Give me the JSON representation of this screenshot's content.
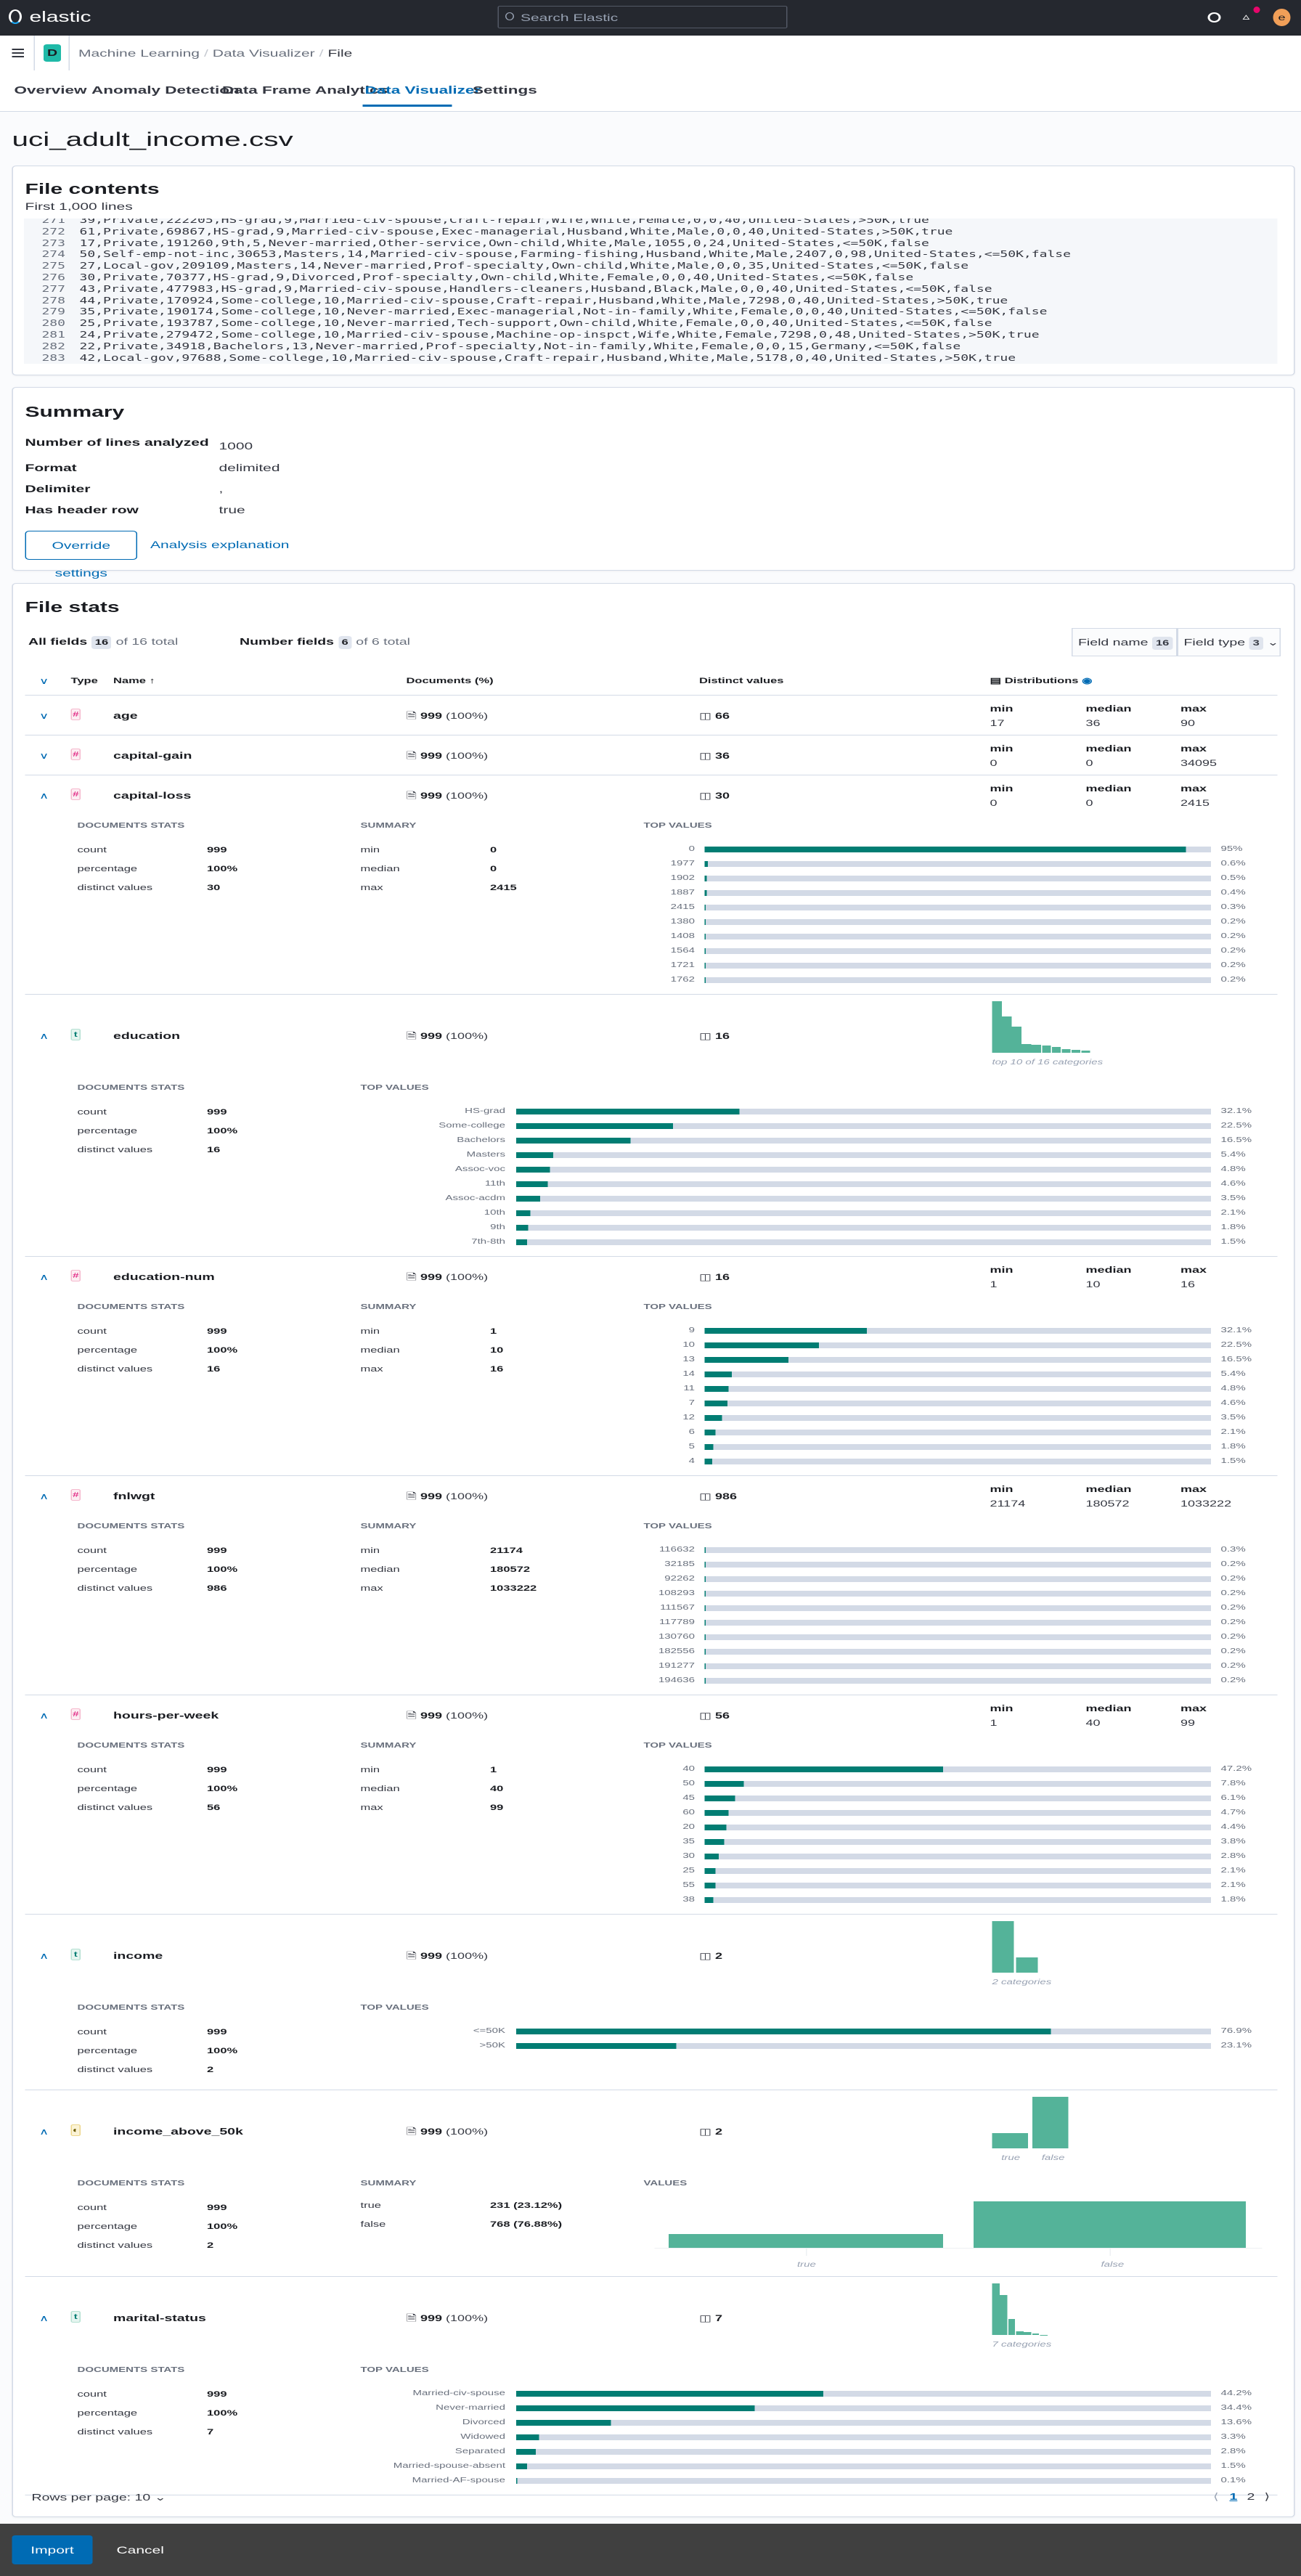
{
  "header": {
    "logo_text": "elastic",
    "search_placeholder": "Search Elastic",
    "avatar_initial": "e",
    "avatar_color": "#f19f58",
    "notification_color": "#e7066b"
  },
  "breadcrumb": {
    "space_initial": "D",
    "items": [
      "Machine Learning",
      "Data Visualizer",
      "File"
    ]
  },
  "tabs": [
    {
      "label": "Overview",
      "active": false
    },
    {
      "label": "Anomaly Detection",
      "active": false
    },
    {
      "label": "Data Frame Analytics",
      "active": false
    },
    {
      "label": "Data Visualizer",
      "active": true
    },
    {
      "label": "Settings",
      "active": false
    }
  ],
  "page_title": "uci_adult_income.csv",
  "file_contents": {
    "title": "File contents",
    "subtitle": "First 1,000 lines",
    "lines": [
      {
        "n": "271",
        "text": "39,Private,222205,HS-grad,9,Married-civ-spouse,Craft-repair,Wife,White,Female,0,0,40,United-States,>50K,true"
      },
      {
        "n": "272",
        "text": "61,Private,69867,HS-grad,9,Married-civ-spouse,Exec-managerial,Husband,White,Male,0,0,40,United-States,>50K,true"
      },
      {
        "n": "273",
        "text": "17,Private,191260,9th,5,Never-married,Other-service,Own-child,White,Male,1055,0,24,United-States,<=50K,false"
      },
      {
        "n": "274",
        "text": "50,Self-emp-not-inc,30653,Masters,14,Married-civ-spouse,Farming-fishing,Husband,White,Male,2407,0,98,United-States,<=50K,false"
      },
      {
        "n": "275",
        "text": "27,Local-gov,209109,Masters,14,Never-married,Prof-specialty,Own-child,White,Male,0,0,35,United-States,<=50K,false"
      },
      {
        "n": "276",
        "text": "30,Private,70377,HS-grad,9,Divorced,Prof-specialty,Own-child,White,Female,0,0,40,United-States,<=50K,false"
      },
      {
        "n": "277",
        "text": "43,Private,477983,HS-grad,9,Married-civ-spouse,Handlers-cleaners,Husband,Black,Male,0,0,40,United-States,<=50K,false"
      },
      {
        "n": "278",
        "text": "44,Private,170924,Some-college,10,Married-civ-spouse,Craft-repair,Husband,White,Male,7298,0,40,United-States,>50K,true"
      },
      {
        "n": "279",
        "text": "35,Private,190174,Some-college,10,Never-married,Exec-managerial,Not-in-family,White,Female,0,0,40,United-States,<=50K,false"
      },
      {
        "n": "280",
        "text": "25,Private,193787,Some-college,10,Never-married,Tech-support,Own-child,White,Female,0,0,40,United-States,<=50K,false"
      },
      {
        "n": "281",
        "text": "24,Private,279472,Some-college,10,Married-civ-spouse,Machine-op-inspct,Wife,White,Female,7298,0,48,United-States,>50K,true"
      },
      {
        "n": "282",
        "text": "22,Private,34918,Bachelors,13,Never-married,Prof-specialty,Not-in-family,White,Female,0,0,15,Germany,<=50K,false"
      },
      {
        "n": "283",
        "text": "42,Local-gov,97688,Some-college,10,Married-civ-spouse,Craft-repair,Husband,White,Male,5178,0,40,United-States,>50K,true"
      }
    ]
  },
  "summary": {
    "title": "Summary",
    "rows": [
      {
        "label": "Number of lines analyzed",
        "value": "1000"
      },
      {
        "label": "Format",
        "value": "delimited"
      },
      {
        "label": "Delimiter",
        "value": ","
      },
      {
        "label": "Has header row",
        "value": "true"
      }
    ],
    "override_button": "Override settings",
    "explanation_link": "Analysis explanation"
  },
  "file_stats": {
    "title": "File stats",
    "all_fields": {
      "label": "All fields",
      "count": "16",
      "total": "of 16 total"
    },
    "number_fields": {
      "label": "Number fields",
      "count": "6",
      "total": "of 6 total"
    },
    "field_name_filter": {
      "label": "Field name",
      "count": "16"
    },
    "field_type_filter": {
      "label": "Field type",
      "count": "3"
    },
    "columns": {
      "type": "Type",
      "name": "Name",
      "documents": "Documents (%)",
      "distinct": "Distinct values",
      "distributions": "Distributions"
    },
    "labels": {
      "min": "min",
      "median": "median",
      "max": "max",
      "documents_stats": "DOCUMENTS STATS",
      "summary": "SUMMARY",
      "top_values": "TOP VALUES",
      "values": "VALUES",
      "count": "count",
      "percentage": "percentage",
      "distinct_values": "distinct values"
    },
    "fields": [
      {
        "name": "age",
        "type": "number",
        "documents": "999",
        "documents_pct": "(100%)",
        "distinct": "66",
        "expanded": false,
        "stats": {
          "min": "17",
          "median": "36",
          "max": "90"
        }
      },
      {
        "name": "capital-gain",
        "type": "number",
        "documents": "999",
        "documents_pct": "(100%)",
        "distinct": "36",
        "expanded": false,
        "stats": {
          "min": "0",
          "median": "0",
          "max": "34095"
        }
      },
      {
        "name": "capital-loss",
        "type": "number",
        "documents": "999",
        "documents_pct": "(100%)",
        "distinct": "30",
        "expanded": true,
        "stats": {
          "min": "0",
          "median": "0",
          "max": "2415"
        },
        "doc_stats": {
          "count": "999",
          "percentage": "100%",
          "distinct_values": "30"
        },
        "top_values": [
          {
            "value": "0",
            "pct": "95%"
          },
          {
            "value": "1977",
            "pct": "0.6%"
          },
          {
            "value": "1902",
            "pct": "0.5%"
          },
          {
            "value": "1887",
            "pct": "0.4%"
          },
          {
            "value": "2415",
            "pct": "0.3%"
          },
          {
            "value": "1380",
            "pct": "0.2%"
          },
          {
            "value": "1408",
            "pct": "0.2%"
          },
          {
            "value": "1564",
            "pct": "0.2%"
          },
          {
            "value": "1721",
            "pct": "0.2%"
          },
          {
            "value": "1762",
            "pct": "0.2%"
          }
        ]
      },
      {
        "name": "education",
        "type": "text",
        "documents": "999",
        "documents_pct": "(100%)",
        "distinct": "16",
        "expanded": true,
        "histogram_caption": "top 10 of 16 categories",
        "doc_stats": {
          "count": "999",
          "percentage": "100%",
          "distinct_values": "16"
        },
        "top_values": [
          {
            "value": "HS-grad",
            "pct": "32.1%"
          },
          {
            "value": "Some-college",
            "pct": "22.5%"
          },
          {
            "value": "Bachelors",
            "pct": "16.5%"
          },
          {
            "value": "Masters",
            "pct": "5.4%"
          },
          {
            "value": "Assoc-voc",
            "pct": "4.8%"
          },
          {
            "value": "11th",
            "pct": "4.6%"
          },
          {
            "value": "Assoc-acdm",
            "pct": "3.5%"
          },
          {
            "value": "10th",
            "pct": "2.1%"
          },
          {
            "value": "9th",
            "pct": "1.8%"
          },
          {
            "value": "7th-8th",
            "pct": "1.5%"
          }
        ]
      },
      {
        "name": "education-num",
        "type": "number",
        "documents": "999",
        "documents_pct": "(100%)",
        "distinct": "16",
        "expanded": true,
        "stats": {
          "min": "1",
          "median": "10",
          "max": "16"
        },
        "doc_stats": {
          "count": "999",
          "percentage": "100%",
          "distinct_values": "16"
        },
        "top_values": [
          {
            "value": "9",
            "pct": "32.1%"
          },
          {
            "value": "10",
            "pct": "22.5%"
          },
          {
            "value": "13",
            "pct": "16.5%"
          },
          {
            "value": "14",
            "pct": "5.4%"
          },
          {
            "value": "11",
            "pct": "4.8%"
          },
          {
            "value": "7",
            "pct": "4.6%"
          },
          {
            "value": "12",
            "pct": "3.5%"
          },
          {
            "value": "6",
            "pct": "2.1%"
          },
          {
            "value": "5",
            "pct": "1.8%"
          },
          {
            "value": "4",
            "pct": "1.5%"
          }
        ]
      },
      {
        "name": "fnlwgt",
        "type": "number",
        "documents": "999",
        "documents_pct": "(100%)",
        "distinct": "986",
        "expanded": true,
        "stats": {
          "min": "21174",
          "median": "180572",
          "max": "1033222"
        },
        "doc_stats": {
          "count": "999",
          "percentage": "100%",
          "distinct_values": "986"
        },
        "top_values": [
          {
            "value": "116632",
            "pct": "0.3%"
          },
          {
            "value": "32185",
            "pct": "0.2%"
          },
          {
            "value": "92262",
            "pct": "0.2%"
          },
          {
            "value": "108293",
            "pct": "0.2%"
          },
          {
            "value": "111567",
            "pct": "0.2%"
          },
          {
            "value": "117789",
            "pct": "0.2%"
          },
          {
            "value": "130760",
            "pct": "0.2%"
          },
          {
            "value": "182556",
            "pct": "0.2%"
          },
          {
            "value": "191277",
            "pct": "0.2%"
          },
          {
            "value": "194636",
            "pct": "0.2%"
          }
        ]
      },
      {
        "name": "hours-per-week",
        "type": "number",
        "documents": "999",
        "documents_pct": "(100%)",
        "distinct": "56",
        "expanded": true,
        "stats": {
          "min": "1",
          "median": "40",
          "max": "99"
        },
        "doc_stats": {
          "count": "999",
          "percentage": "100%",
          "distinct_values": "56"
        },
        "top_values": [
          {
            "value": "40",
            "pct": "47.2%"
          },
          {
            "value": "50",
            "pct": "7.8%"
          },
          {
            "value": "45",
            "pct": "6.1%"
          },
          {
            "value": "60",
            "pct": "4.7%"
          },
          {
            "value": "20",
            "pct": "4.4%"
          },
          {
            "value": "35",
            "pct": "3.8%"
          },
          {
            "value": "30",
            "pct": "2.8%"
          },
          {
            "value": "25",
            "pct": "2.1%"
          },
          {
            "value": "55",
            "pct": "2.1%"
          },
          {
            "value": "38",
            "pct": "1.8%"
          }
        ]
      },
      {
        "name": "income",
        "type": "text",
        "documents": "999",
        "documents_pct": "(100%)",
        "distinct": "2",
        "expanded": true,
        "histogram_caption": "2 categories",
        "doc_stats": {
          "count": "999",
          "percentage": "100%",
          "distinct_values": "2"
        },
        "top_values": [
          {
            "value": "<=50K",
            "pct": "76.9%"
          },
          {
            "value": ">50K",
            "pct": "23.1%"
          }
        ]
      },
      {
        "name": "income_above_50k",
        "type": "boolean",
        "documents": "999",
        "documents_pct": "(100%)",
        "distinct": "2",
        "expanded": true,
        "doc_stats": {
          "count": "999",
          "percentage": "100%",
          "distinct_values": "2"
        },
        "bool_values": [
          {
            "label": "true",
            "summary": "231 (23.12%)",
            "count": 231
          },
          {
            "label": "false",
            "summary": "768 (76.88%)",
            "count": 768
          }
        ]
      },
      {
        "name": "marital-status",
        "type": "text",
        "documents": "999",
        "documents_pct": "(100%)",
        "distinct": "7",
        "expanded": true,
        "histogram_caption": "7 categories",
        "doc_stats": {
          "count": "999",
          "percentage": "100%",
          "distinct_values": "7"
        },
        "top_values": [
          {
            "value": "Married-civ-spouse",
            "pct": "44.2%"
          },
          {
            "value": "Never-married",
            "pct": "34.4%"
          },
          {
            "value": "Divorced",
            "pct": "13.6%"
          },
          {
            "value": "Widowed",
            "pct": "3.3%"
          },
          {
            "value": "Separated",
            "pct": "2.8%"
          },
          {
            "value": "Married-spouse-absent",
            "pct": "1.5%"
          },
          {
            "value": "Married-AF-spouse",
            "pct": "0.1%"
          }
        ]
      }
    ],
    "pagination": {
      "rows_per_page": "Rows per page: 10",
      "pages": [
        "1",
        "2"
      ],
      "current": "1"
    }
  },
  "footer": {
    "import": "Import",
    "cancel": "Cancel"
  },
  "colors": {
    "accent": "#006bb4",
    "bar_fill": "#017d73",
    "bar_bg": "#d3dae6",
    "histogram": "#54b399",
    "header_bg": "#25282f",
    "footer_bg": "#404040"
  }
}
